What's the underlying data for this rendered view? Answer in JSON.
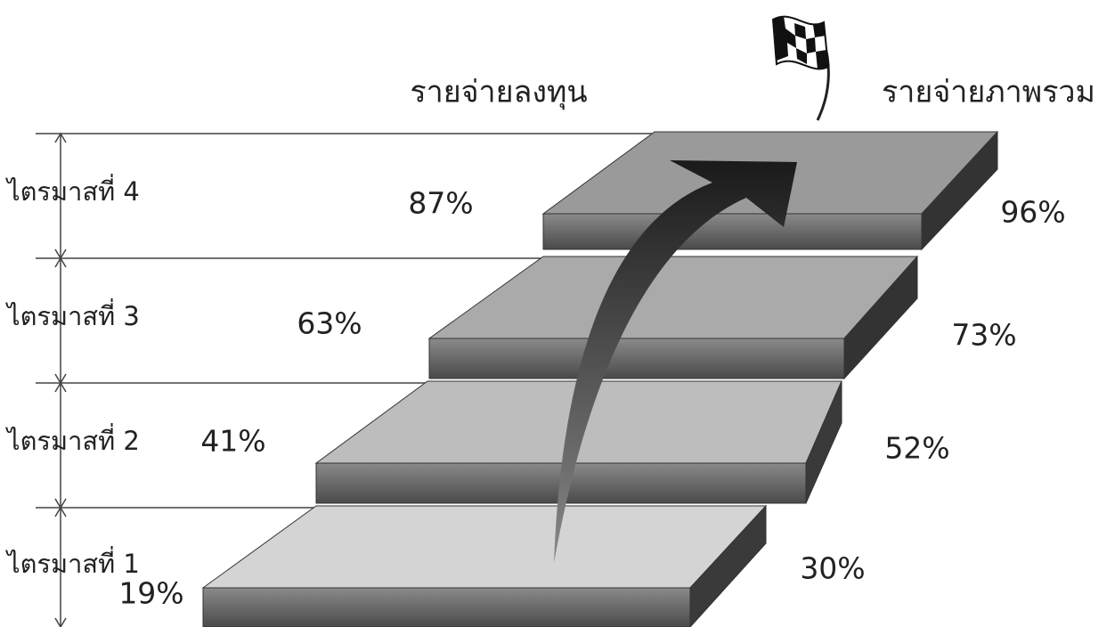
{
  "headers": {
    "investment": "รายจ่ายลงทุน",
    "total": "รายจ่ายภาพรวม"
  },
  "quarters": [
    {
      "label": "ไตรมาสที่ 1",
      "investment": "19%",
      "total": "30%"
    },
    {
      "label": "ไตรมาสที่ 2",
      "investment": "41%",
      "total": "52%"
    },
    {
      "label": "ไตรมาสที่ 3",
      "investment": "63%",
      "total": "73%"
    },
    {
      "label": "ไตรมาสที่ 4",
      "investment": "87%",
      "total": "96%"
    }
  ]
}
